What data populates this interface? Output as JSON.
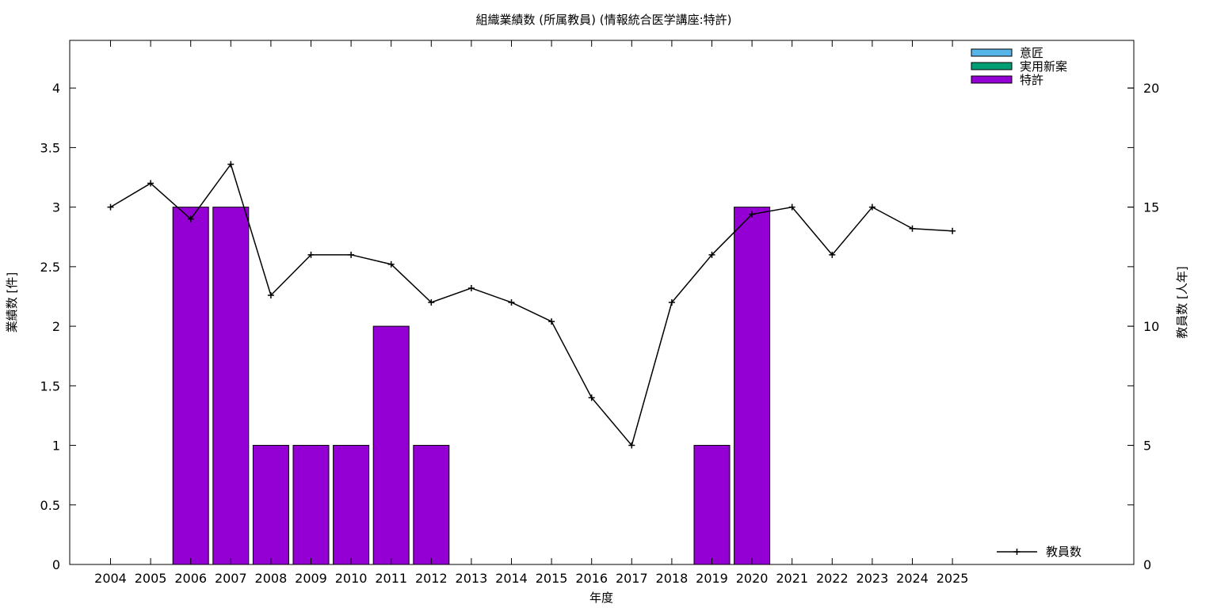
{
  "chart_data": {
    "type": "bar",
    "title": "組織業績数 (所属教員) (情報統合医学講座:特許)",
    "xlabel": "年度",
    "ylabel": "業績数 [件]",
    "y2label": "教員数 [人年]",
    "categories": [
      "2004",
      "2005",
      "2006",
      "2007",
      "2008",
      "2009",
      "2010",
      "2011",
      "2012",
      "2013",
      "2014",
      "2015",
      "2016",
      "2017",
      "2018",
      "2019",
      "2020",
      "2021",
      "2022",
      "2023",
      "2024",
      "2025"
    ],
    "ylim": [
      0,
      4.4
    ],
    "y2lim": [
      0,
      22
    ],
    "yticks": [
      "0",
      "0.5",
      "1",
      "1.5",
      "2",
      "2.5",
      "3",
      "3.5",
      "4"
    ],
    "y2ticks": [
      "0",
      "5",
      "10",
      "15",
      "20"
    ],
    "grid": false,
    "legend_position": "top-right",
    "series": [
      {
        "name": "意匠",
        "kind": "bar",
        "color": "#56b4e9",
        "values": [
          0,
          0,
          0,
          0,
          0,
          0,
          0,
          0,
          0,
          0,
          0,
          0,
          0,
          0,
          0,
          0,
          0,
          0,
          0,
          0,
          0,
          0
        ]
      },
      {
        "name": "実用新案",
        "kind": "bar",
        "color": "#009e73",
        "values": [
          0,
          0,
          0,
          0,
          0,
          0,
          0,
          0,
          0,
          0,
          0,
          0,
          0,
          0,
          0,
          0,
          0,
          0,
          0,
          0,
          0,
          0
        ]
      },
      {
        "name": "特許",
        "kind": "bar",
        "color": "#9400d3",
        "values": [
          0,
          0,
          3,
          3,
          1,
          1,
          1,
          2,
          1,
          0,
          0,
          0,
          0,
          0,
          0,
          1,
          3,
          0,
          0,
          0,
          0,
          0
        ]
      },
      {
        "name": "教員数",
        "kind": "line",
        "axis": "right",
        "color": "#000000",
        "values": [
          15.0,
          16.0,
          14.5,
          16.8,
          11.3,
          13.0,
          13.0,
          12.6,
          11.0,
          11.6,
          11.0,
          10.2,
          7.0,
          5.0,
          11.0,
          13.0,
          14.7,
          15.0,
          13.0,
          15.0,
          14.1,
          14.0
        ]
      }
    ]
  }
}
